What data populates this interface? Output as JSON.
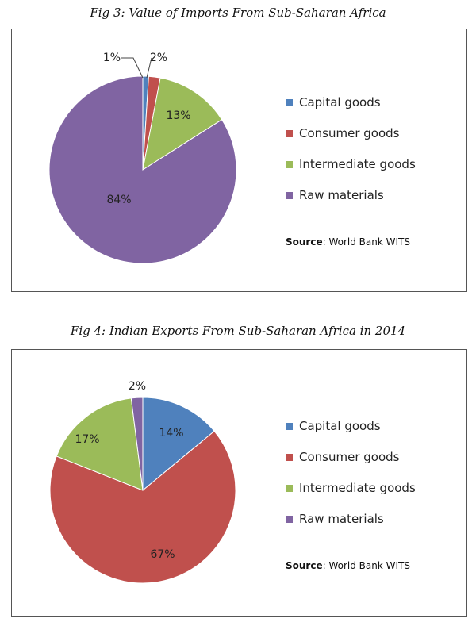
{
  "chart_data": [
    {
      "type": "pie",
      "title": "Fig 3: Value of Imports From Sub-Saharan Africa",
      "categories": [
        "Capital goods",
        "Consumer goods",
        "Intermediate goods",
        "Raw materials"
      ],
      "values": [
        1,
        2,
        13,
        84
      ],
      "labels": [
        "1%",
        "2%",
        "13%",
        "84%"
      ],
      "colors": [
        "#4f81bd",
        "#c0504d",
        "#9bbb59",
        "#8064a2"
      ],
      "legend": "right",
      "source_label": "Source",
      "source_text": ": World Bank WITS"
    },
    {
      "type": "pie",
      "title": "Fig 4: Indian Exports From Sub-Saharan Africa in 2014",
      "categories": [
        "Capital goods",
        "Consumer goods",
        "Intermediate goods",
        "Raw materials"
      ],
      "values": [
        14,
        67,
        17,
        2
      ],
      "labels": [
        "14%",
        "67%",
        "17%",
        "2%"
      ],
      "colors": [
        "#4f81bd",
        "#c0504d",
        "#9bbb59",
        "#8064a2"
      ],
      "legend": "right",
      "source_label": "Source",
      "source_text": ": World Bank WITS"
    }
  ]
}
